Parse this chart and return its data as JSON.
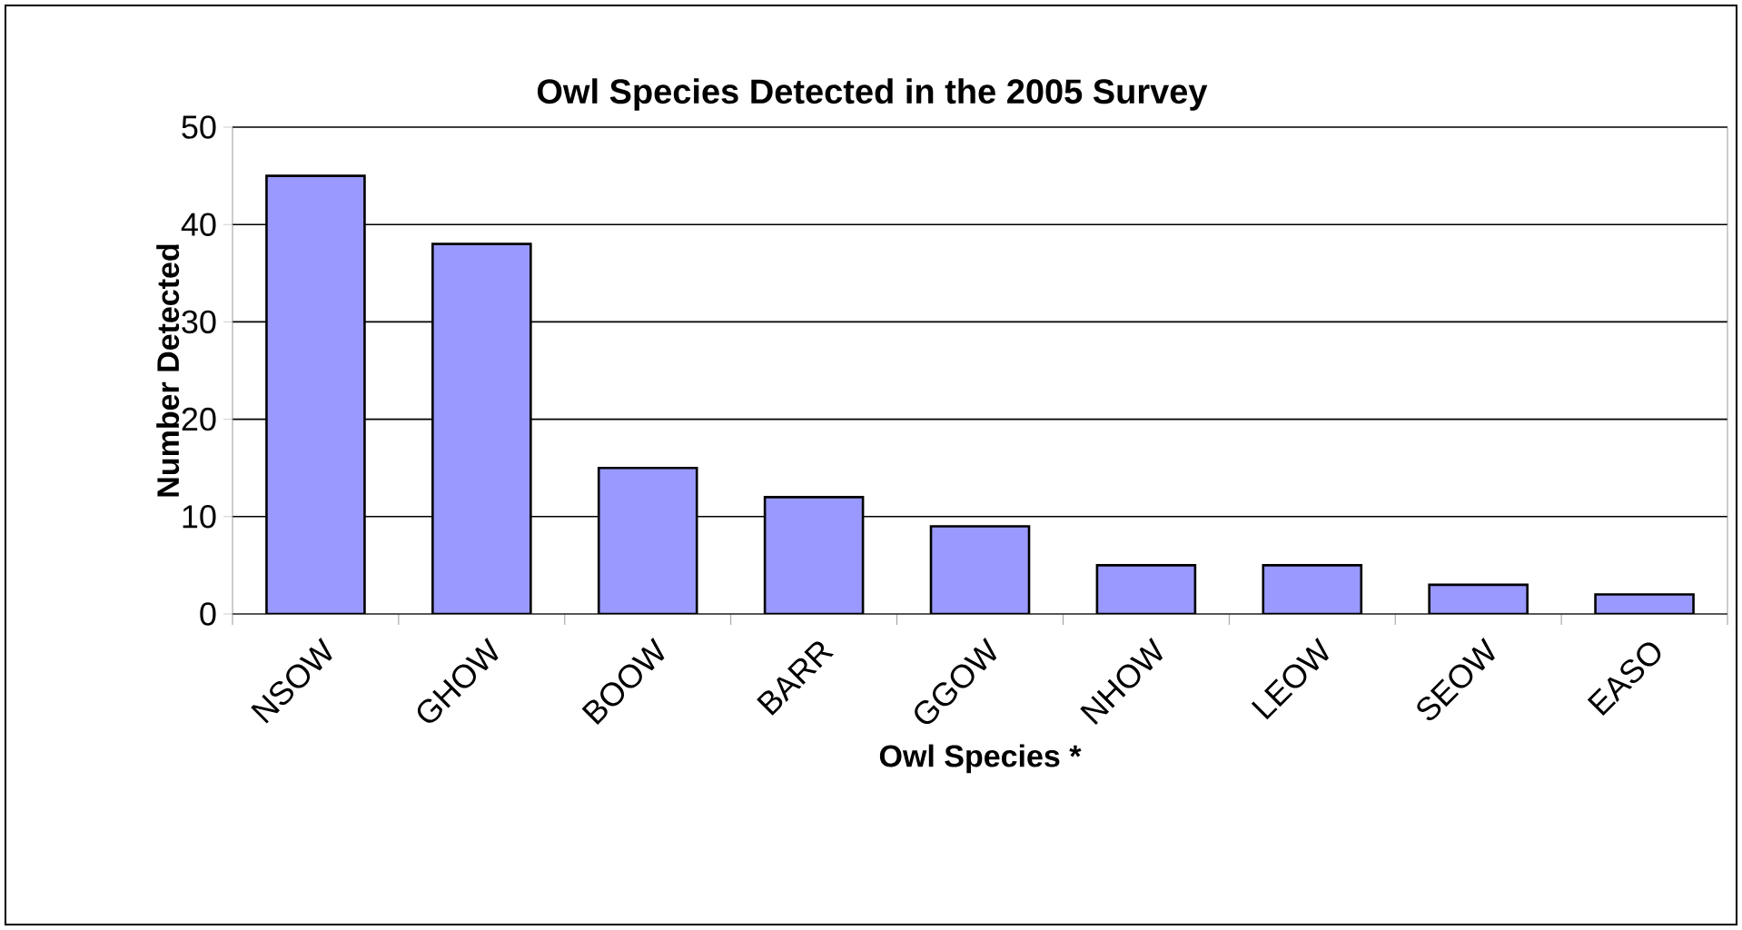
{
  "chart_data": {
    "type": "bar",
    "title": "Owl Species Detected in the 2005 Survey",
    "xlabel": "Owl Species *",
    "ylabel": "Number Detected",
    "categories": [
      "NSOW",
      "GHOW",
      "BOOW",
      "BARR",
      "GGOW",
      "NHOW",
      "LEOW",
      "SEOW",
      "EASO"
    ],
    "values": [
      45,
      38,
      15,
      12,
      9,
      5,
      5,
      3,
      2
    ],
    "color": "#9999ff",
    "ylim": [
      0,
      50
    ],
    "yticks": [
      0,
      10,
      20,
      30,
      40,
      50
    ],
    "grid": "y"
  }
}
